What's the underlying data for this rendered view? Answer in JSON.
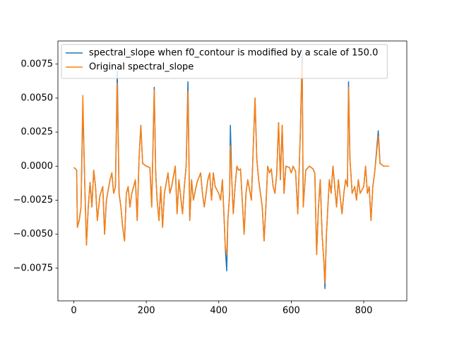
{
  "chart_data": {
    "type": "line",
    "x": [
      0,
      5,
      8,
      10,
      15,
      20,
      25,
      30,
      35,
      40,
      45,
      50,
      55,
      60,
      65,
      72,
      80,
      85,
      90,
      100,
      105,
      110,
      115,
      120,
      125,
      130,
      135,
      140,
      145,
      150,
      155,
      160,
      170,
      175,
      180,
      185,
      190,
      200,
      210,
      215,
      222,
      226,
      230,
      235,
      240,
      245,
      250,
      260,
      265,
      270,
      280,
      285,
      290,
      300,
      305,
      310,
      315,
      320,
      325,
      330,
      340,
      350,
      355,
      360,
      370,
      375,
      380,
      385,
      390,
      400,
      405,
      410,
      415,
      418,
      422,
      425,
      430,
      432,
      436,
      440,
      445,
      450,
      455,
      460,
      470,
      475,
      480,
      490,
      500,
      505,
      510,
      520,
      525,
      530,
      535,
      540,
      545,
      550,
      555,
      560,
      565,
      570,
      575,
      580,
      585,
      595,
      600,
      605,
      612,
      618,
      625,
      630,
      633,
      640,
      650,
      660,
      665,
      670,
      675,
      680,
      685,
      690,
      693,
      697,
      705,
      710,
      715,
      720,
      725,
      730,
      740,
      745,
      750,
      755,
      758,
      762,
      768,
      775,
      780,
      785,
      790,
      800,
      805,
      810,
      815,
      820,
      825,
      830,
      840,
      845,
      855,
      870
    ],
    "series": [
      {
        "name": "spectral_slope when f0_contour is modified by a scale of 150.0",
        "color": "#1f77b4",
        "values": [
          -0.0001,
          -0.0002,
          -0.0003,
          -0.0045,
          -0.004,
          -0.003,
          0.0045,
          -0.001,
          -0.0058,
          -0.003,
          -0.0012,
          -0.003,
          -0.0003,
          -0.0015,
          -0.004,
          -0.0022,
          -0.0015,
          -0.005,
          -0.0025,
          -0.001,
          -0.0005,
          -0.002,
          -0.0015,
          0.007,
          -0.002,
          -0.003,
          -0.0045,
          -0.0055,
          -0.002,
          -0.0015,
          -0.003,
          -0.002,
          -0.001,
          -0.004,
          0.0005,
          0.003,
          0.0002,
          0,
          -0.0001,
          -0.003,
          0.0058,
          -0.0005,
          -0.0025,
          -0.004,
          -0.0015,
          -0.0045,
          -0.002,
          -0.0005,
          -0.002,
          -0.0015,
          0,
          -0.0035,
          -0.001,
          -0.0035,
          -0.0015,
          0,
          0.0062,
          -0.004,
          -0.001,
          -0.0025,
          -0.0012,
          -0.0005,
          -0.002,
          -0.003,
          -0.001,
          -0.0005,
          -0.0025,
          -0.0005,
          -0.0015,
          -0.002,
          -0.0025,
          -0.001,
          -0.004,
          -0.006,
          -0.0077,
          -0.004,
          -0.002,
          0.003,
          -0.001,
          -0.0035,
          -0.0015,
          0,
          -0.0003,
          -0.0002,
          -0.005,
          -0.002,
          -0.001,
          -0.0025,
          0.005,
          0.0005,
          -0.001,
          -0.003,
          -0.0055,
          -0.003,
          0,
          -0.0005,
          -0.0002,
          -0.0015,
          -0.002,
          -0.0005,
          0.0032,
          -0.001,
          0.003,
          -0.002,
          0,
          -0.0001,
          -0.0005,
          0,
          -0.0004,
          -0.0035,
          0.0025,
          0.0082,
          -0.003,
          -0.0003,
          0,
          -0.0002,
          -0.0005,
          -0.0065,
          -0.003,
          -0.001,
          -0.005,
          -0.007,
          -0.009,
          -0.005,
          -0.001,
          -0.002,
          0,
          -0.0015,
          -0.003,
          -0.001,
          -0.0035,
          -0.002,
          -0.001,
          -0.0015,
          0.0062,
          0.0005,
          -0.002,
          -0.0015,
          -0.0025,
          -0.001,
          -0.002,
          -0.0015,
          0,
          -0.002,
          -0.0015,
          -0.004,
          -0.0015,
          -0.0005,
          0.0026,
          0.0002,
          0,
          0
        ]
      },
      {
        "name": "Original spectral_slope",
        "color": "#ff7f0e",
        "values": [
          -0.0001,
          -0.0002,
          -0.0003,
          -0.0045,
          -0.004,
          -0.003,
          0.0052,
          -0.001,
          -0.0058,
          -0.003,
          -0.0012,
          -0.003,
          -0.0003,
          -0.0015,
          -0.004,
          -0.0022,
          -0.0015,
          -0.005,
          -0.0025,
          -0.001,
          -0.0005,
          -0.002,
          -0.0015,
          0.0061,
          -0.002,
          -0.003,
          -0.0045,
          -0.0055,
          -0.002,
          -0.0015,
          -0.003,
          -0.002,
          -0.001,
          -0.004,
          0.0005,
          0.003,
          0.0002,
          0,
          -0.0001,
          -0.003,
          0.0056,
          -0.0005,
          -0.0025,
          -0.004,
          -0.0015,
          -0.0045,
          -0.002,
          -0.0005,
          -0.002,
          -0.0015,
          0,
          -0.0035,
          -0.001,
          -0.0035,
          -0.0015,
          0,
          0.0055,
          -0.004,
          -0.001,
          -0.0025,
          -0.0012,
          -0.0005,
          -0.002,
          -0.003,
          -0.001,
          -0.0005,
          -0.0025,
          -0.0005,
          -0.0015,
          -0.002,
          -0.0025,
          -0.001,
          -0.004,
          -0.006,
          -0.0065,
          -0.004,
          -0.002,
          0.0015,
          -0.001,
          -0.0035,
          -0.0015,
          0,
          -0.0003,
          -0.0002,
          -0.005,
          -0.002,
          -0.001,
          -0.0025,
          0.005,
          0.0005,
          -0.001,
          -0.003,
          -0.0055,
          -0.003,
          0,
          -0.0005,
          -0.0002,
          -0.0015,
          -0.002,
          -0.0005,
          0.0032,
          -0.001,
          0.003,
          -0.002,
          0,
          -0.0001,
          -0.0005,
          0,
          -0.0004,
          -0.0035,
          0.0025,
          0.0075,
          -0.003,
          -0.0003,
          0,
          -0.0002,
          -0.0005,
          -0.0065,
          -0.003,
          -0.001,
          -0.005,
          -0.007,
          -0.0086,
          -0.005,
          -0.001,
          -0.002,
          0,
          -0.0015,
          -0.003,
          -0.001,
          -0.0035,
          -0.002,
          -0.001,
          -0.0015,
          0.0058,
          0.0005,
          -0.002,
          -0.0015,
          -0.0025,
          -0.001,
          -0.002,
          -0.0015,
          0,
          -0.002,
          -0.0015,
          -0.004,
          -0.0015,
          -0.0005,
          0.0022,
          0.0002,
          0,
          0
        ]
      }
    ],
    "xlim": [
      -43.75,
      918.75
    ],
    "xticks": [
      0,
      200,
      400,
      600,
      800
    ],
    "ylim": [
      -0.0099,
      0.0092
    ],
    "yticks": [
      {
        "value": -0.0075,
        "label": "−0.0075"
      },
      {
        "value": -0.005,
        "label": "−0.0050"
      },
      {
        "value": -0.0025,
        "label": "−0.0025"
      },
      {
        "value": 0,
        "label": "0.0000"
      },
      {
        "value": 0.0025,
        "label": "0.0025"
      },
      {
        "value": 0.005,
        "label": "0.0050"
      },
      {
        "value": 0.0075,
        "label": "0.0075"
      }
    ],
    "legend": "upper left"
  }
}
